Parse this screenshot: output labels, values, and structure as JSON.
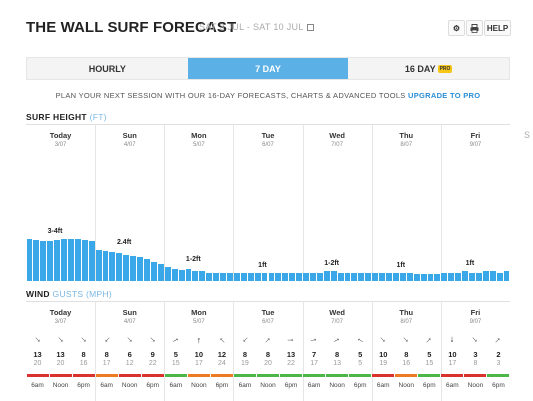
{
  "header": {
    "title": "THE WALL SURF FORECAST",
    "date_range": "SAT 3 JUL - SAT 10 JUL",
    "calendar_icon": "calendar-icon",
    "settings_icon": "gear-icon",
    "print_icon": "print-icon",
    "help_label": "HELP"
  },
  "tabs": [
    {
      "label": "HOURLY",
      "active": false
    },
    {
      "label": "7 DAY",
      "active": true
    },
    {
      "label": "16 DAY",
      "badge": "PRO",
      "active": false
    }
  ],
  "promo": {
    "text": "PLAN YOUR NEXT SESSION WITH OUR 16-DAY FORECASTS, CHARTS & ADVANCED TOOLS ",
    "link": "UPGRADE TO PRO"
  },
  "surf": {
    "title": "SURF HEIGHT",
    "unit": "(FT)",
    "cut_label": "S"
  },
  "wind": {
    "title": "WIND",
    "gusts": "GUSTS",
    "unit": "(MPH)"
  },
  "days": [
    {
      "name": "Today",
      "date": "3/07"
    },
    {
      "name": "Sun",
      "date": "4/07"
    },
    {
      "name": "Mon",
      "date": "5/07"
    },
    {
      "name": "Tue",
      "date": "6/07"
    },
    {
      "name": "Wed",
      "date": "7/07"
    },
    {
      "name": "Thu",
      "date": "8/07"
    },
    {
      "name": "Fri",
      "date": "9/07"
    }
  ],
  "colors": {
    "accent": "#5bb0e6",
    "bars": "#3aa8e8",
    "wind_red": "#d9312b",
    "wind_orange": "#ee7a22",
    "wind_green": "#4cb648",
    "pro_badge": "#f5c518"
  },
  "chart_data": {
    "type": "bar",
    "title": "SURF HEIGHT",
    "ylabel": "(FT)",
    "unit": "ft",
    "day_labels": [
      "3-4ft",
      "2.4ft",
      "1-2ft",
      "1ft",
      "1-2ft",
      "1ft",
      "1ft"
    ],
    "values": [
      3.5,
      3.4,
      3.3,
      3.3,
      3.4,
      3.5,
      3.5,
      3.5,
      3.4,
      3.3,
      2.6,
      2.5,
      2.4,
      2.3,
      2.2,
      2.1,
      2.0,
      1.8,
      1.6,
      1.4,
      1.2,
      1.0,
      0.9,
      1.0,
      0.8,
      0.8,
      0.7,
      0.7,
      0.7,
      0.7,
      0.7,
      0.7,
      0.7,
      0.7,
      0.7,
      0.7,
      0.7,
      0.7,
      0.7,
      0.7,
      0.7,
      0.7,
      0.7,
      0.8,
      0.8,
      0.7,
      0.7,
      0.7,
      0.7,
      0.7,
      0.7,
      0.7,
      0.7,
      0.7,
      0.7,
      0.7,
      0.6,
      0.6,
      0.6,
      0.6,
      0.7,
      0.7,
      0.7,
      0.8,
      0.7,
      0.7,
      0.8,
      0.8,
      0.7,
      0.8
    ]
  },
  "wind_data": {
    "times": [
      "6am",
      "Noon",
      "6pm"
    ],
    "entries": [
      {
        "speed": 13,
        "gust": 20,
        "dir": 135,
        "color": "red"
      },
      {
        "speed": 13,
        "gust": 20,
        "dir": 135,
        "color": "red"
      },
      {
        "speed": 8,
        "gust": 16,
        "dir": 135,
        "color": "red"
      },
      {
        "speed": 8,
        "gust": 17,
        "dir": 225,
        "color": "orange"
      },
      {
        "speed": 6,
        "gust": 12,
        "dir": 135,
        "color": "red"
      },
      {
        "speed": 9,
        "gust": 22,
        "dir": 135,
        "color": "red"
      },
      {
        "speed": 5,
        "gust": 15,
        "dir": 60,
        "color": "green"
      },
      {
        "speed": 10,
        "gust": 17,
        "dir": 0,
        "color": "orange"
      },
      {
        "speed": 12,
        "gust": 24,
        "dir": 315,
        "color": "orange"
      },
      {
        "speed": 8,
        "gust": 19,
        "dir": 225,
        "color": "green"
      },
      {
        "speed": 8,
        "gust": 20,
        "dir": 45,
        "color": "green"
      },
      {
        "speed": 13,
        "gust": 22,
        "dir": 90,
        "color": "green"
      },
      {
        "speed": 7,
        "gust": 17,
        "dir": 80,
        "color": "green"
      },
      {
        "speed": 8,
        "gust": 13,
        "dir": 60,
        "color": "green"
      },
      {
        "speed": 5,
        "gust": 5,
        "dir": 300,
        "color": "green"
      },
      {
        "speed": 10,
        "gust": 19,
        "dir": 135,
        "color": "red"
      },
      {
        "speed": 8,
        "gust": 16,
        "dir": 135,
        "color": "orange"
      },
      {
        "speed": 5,
        "gust": 15,
        "dir": 45,
        "color": "green"
      },
      {
        "speed": 10,
        "gust": 17,
        "dir": 180,
        "color": "red"
      },
      {
        "speed": 3,
        "gust": 8,
        "dir": 135,
        "color": "red"
      },
      {
        "speed": 2,
        "gust": 3,
        "dir": 45,
        "color": "green"
      }
    ]
  }
}
